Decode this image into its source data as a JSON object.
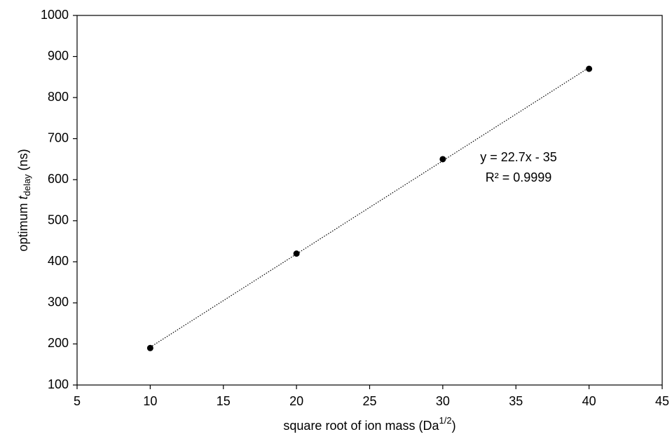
{
  "chart_data": {
    "type": "scatter",
    "x_label": {
      "text": "square root of ion mass  (Da",
      "sup": "1/2",
      "end": ")"
    },
    "y_label": {
      "text": "optimum ",
      "var": "t",
      "sub": "delay",
      "end": "  (ns)"
    },
    "x": [
      10,
      20,
      30,
      40
    ],
    "series": [
      {
        "color": "#000000",
        "values": [
          190,
          420,
          650,
          870
        ]
      }
    ],
    "trendline": {
      "style": "dotted",
      "fit": "linear"
    },
    "annotations": [
      "y = 22.7x - 35",
      "R² = 0.9999"
    ],
    "xlim": [
      5,
      45
    ],
    "xticks": [
      5,
      10,
      15,
      20,
      25,
      30,
      35,
      40,
      45
    ],
    "ylim": [
      100,
      1000
    ],
    "yticks": [
      100,
      200,
      300,
      400,
      500,
      600,
      700,
      800,
      900,
      1000
    ],
    "grid": false
  }
}
